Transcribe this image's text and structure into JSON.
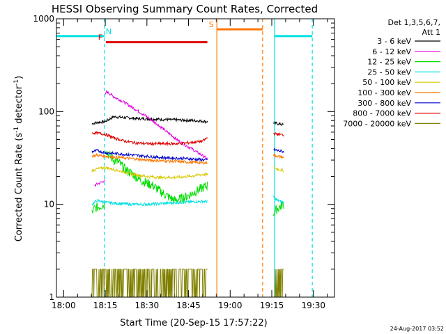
{
  "chart_data": {
    "type": "line",
    "title": "HESSI Observing Summary Count Rates, Corrected",
    "xlabel": "Start Time (20-Sep-15 17:57:22)",
    "ylabel_main": "Corrected Count Rate (s",
    "ylabel_sup1": "-1",
    "ylabel_mid": " detector",
    "ylabel_sup2": "-1",
    "ylabel_end": ")",
    "yscale": "log",
    "ylim": [
      1,
      1000
    ],
    "xlim_minutes": [
      -2.6,
      97.6
    ],
    "x_ticks": [
      {
        "label": "18:00",
        "minute": 0
      },
      {
        "label": "18:15",
        "minute": 15
      },
      {
        "label": "18:30",
        "minute": 30
      },
      {
        "label": "18:45",
        "minute": 45
      },
      {
        "label": "19:00",
        "minute": 60
      },
      {
        "label": "19:15",
        "minute": 75
      },
      {
        "label": "19:30",
        "minute": 90
      }
    ],
    "y_ticks": [
      {
        "label": "1",
        "value": 1
      },
      {
        "label": "10",
        "value": 10
      },
      {
        "label": "100",
        "value": 100
      },
      {
        "label": "1000",
        "value": 1000
      }
    ],
    "legend_header": [
      "Det 1,3,5,6,7,",
      "Att 1"
    ],
    "legend_position": "right",
    "series": [
      {
        "name": "3 - 6 keV",
        "color": "#000000",
        "segments": [
          {
            "x": [
              10.2,
              11,
              13,
              15,
              18,
              22,
              27,
              32,
              37,
              42,
              47,
              51.8
            ],
            "y": [
              74,
              75,
              77,
              78,
              88,
              86,
              84,
              83,
              82,
              81,
              80,
              78
            ]
          },
          {
            "x": [
              75.6,
              77,
              79.3
            ],
            "y": [
              76,
              74,
              72
            ]
          }
        ]
      },
      {
        "name": "6 - 12 keV",
        "color": "#e000e0",
        "segments": [
          {
            "x": [
              11.2,
              12,
              13,
              14.7
            ],
            "y": [
              16,
              16.5,
              17,
              18
            ]
          },
          {
            "x": [
              15,
              15.5,
              18,
              22,
              26,
              30,
              34,
              38,
              42,
              46,
              49,
              51.8
            ],
            "y": [
              150,
              165,
              145,
              125,
              105,
              88,
              72,
              58,
              47,
              40,
              35,
              31
            ]
          }
        ]
      },
      {
        "name": "12 - 25 keV",
        "color": "#00dd00",
        "segments": [
          {
            "x": [
              10.2,
              11,
              13,
              14.7
            ],
            "y": [
              8,
              9,
              9.5,
              10
            ]
          },
          {
            "x": [
              15,
              16,
              18,
              20,
              22,
              25,
              28,
              32,
              36,
              40,
              44,
              48,
              51.8
            ],
            "y": [
              40,
              35,
              30,
              28,
              24,
              21,
              18,
              16,
              13,
              11,
              12,
              14,
              16
            ]
          },
          {
            "x": [
              75.6,
              77,
              79.3
            ],
            "y": [
              8,
              9,
              10
            ]
          }
        ]
      },
      {
        "name": "25 - 50 keV",
        "color": "#00e0e0",
        "segments": [
          {
            "x": [
              -2.6,
              14.7
            ],
            "y": [
              650,
              650
            ]
          },
          {
            "x": [
              10.2,
              12,
              15,
              20,
              25,
              30,
              35,
              40,
              45,
              51.8
            ],
            "y": [
              10,
              11,
              10.5,
              10.2,
              10,
              10,
              10.2,
              10.4,
              10.6,
              10.8
            ]
          },
          {
            "x": [
              75.6,
              77,
              79.3
            ],
            "y": [
              12,
              11,
              10.5
            ]
          },
          {
            "x": [
              76.0,
              89.6
            ],
            "y": [
              650,
              650
            ]
          }
        ]
      },
      {
        "name": "50 - 100 keV",
        "color": "#d8c800",
        "segments": [
          {
            "x": [
              10.2,
              12,
              15,
              20,
              25,
              30,
              35,
              40,
              45,
              50,
              51.8
            ],
            "y": [
              23,
              24,
              25,
              23,
              21,
              20,
              19.5,
              19.5,
              20,
              21,
              21
            ]
          },
          {
            "x": [
              75.6,
              77,
              79.3
            ],
            "y": [
              25,
              24,
              23
            ]
          }
        ]
      },
      {
        "name": "100 - 300 keV",
        "color": "#ff7700",
        "segments": [
          {
            "x": [
              10.2,
              12,
              15,
              20,
              25,
              30,
              35,
              40,
              45,
              51.8
            ],
            "y": [
              33,
              34,
              33,
              32,
              31,
              30,
              29.5,
              29,
              28.5,
              28
            ]
          },
          {
            "x": [
              55.2,
              71.7
            ],
            "y": [
              770,
              770
            ]
          },
          {
            "x": [
              75.6,
              77,
              79.3
            ],
            "y": [
              34,
              33,
              32
            ]
          }
        ]
      },
      {
        "name": "300 - 800 keV",
        "color": "#0000cc",
        "segments": [
          {
            "x": [
              10.2,
              12,
              15,
              20,
              25,
              30,
              35,
              40,
              45,
              51.8
            ],
            "y": [
              37,
              38,
              36,
              35,
              34,
              33,
              32,
              31.5,
              31,
              30
            ]
          },
          {
            "x": [
              75.6,
              77,
              79.3
            ],
            "y": [
              39,
              38,
              37
            ]
          }
        ]
      },
      {
        "name": "800 - 7000 keV",
        "color": "#dd0000",
        "segments": [
          {
            "x": [
              10.2,
              11,
              13,
              15,
              18,
              22,
              26,
              30,
              35,
              40,
              45,
              50,
              51.8
            ],
            "y": [
              58,
              59,
              58,
              57,
              52,
              48,
              46,
              45,
              45,
              45,
              46,
              48,
              52
            ]
          },
          {
            "x": [
              15.2,
              51.8
            ],
            "y": [
              560,
              560
            ]
          },
          {
            "x": [
              75.6,
              77,
              79.3
            ],
            "y": [
              58,
              57,
              56
            ]
          }
        ]
      },
      {
        "name": "7000 - 20000 keV",
        "color": "#808000",
        "segments": [
          {
            "x": [
              10.2,
              51.8
            ],
            "y": [
              1.5,
              1.5
            ]
          },
          {
            "x": [
              75.6,
              79.3
            ],
            "y": [
              1.5,
              1.5
            ]
          }
        ]
      }
    ],
    "markers": [
      {
        "label": "F",
        "color": "#dd0000",
        "x": 15.2,
        "y": 560
      },
      {
        "label": "N",
        "color": "#00e0e0",
        "x": 14.7,
        "y": 650
      },
      {
        "label": "S",
        "color": "#ff7700",
        "x": 55.2,
        "y": 770
      }
    ],
    "vlines": [
      {
        "x": 14.7,
        "color": "#00e0e0",
        "dashed": true
      },
      {
        "x": 71.7,
        "color": "#ff7700",
        "dashed": true
      },
      {
        "x": 89.6,
        "color": "#00e0e0",
        "dashed": true
      },
      {
        "x": 55.2,
        "color": "#ff7700",
        "dashed": false
      },
      {
        "x": 76.0,
        "color": "#00e0e0",
        "dashed": false
      }
    ],
    "footer_stamp": "24-Aug-2017 03:52"
  }
}
